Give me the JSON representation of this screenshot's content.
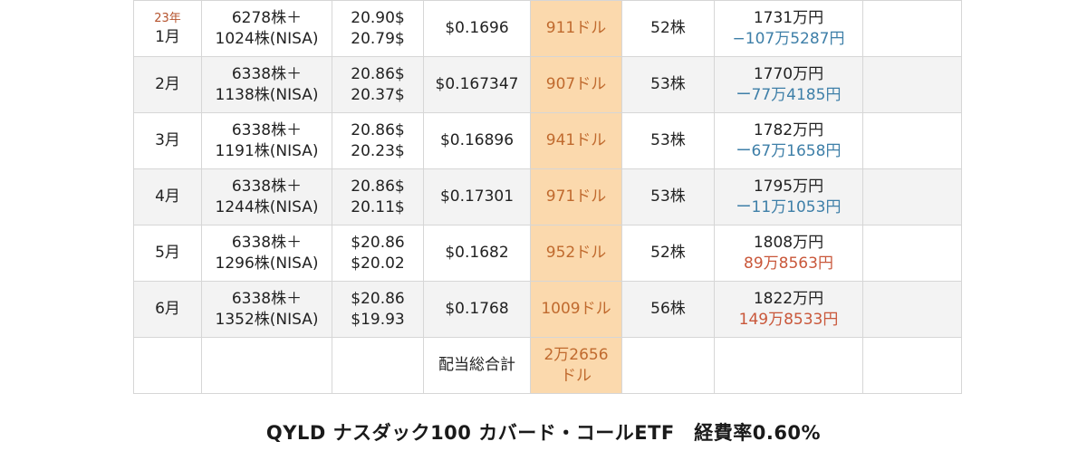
{
  "rows": [
    {
      "year": "23年",
      "month": "1月",
      "shares_1": "6278株＋",
      "shares_2": "1024株(NISA)",
      "price_1": "20.90$",
      "price_2": "20.79$",
      "dividend_per_share": "$0.1696",
      "dividend_total": "911ドル",
      "reinvest": "52株",
      "value": "1731万円",
      "pl": "−107万5287円",
      "pl_sign": "neg"
    },
    {
      "year": "",
      "month": "2月",
      "shares_1": "6338株＋",
      "shares_2": "1138株(NISA)",
      "price_1": "20.86$",
      "price_2": "20.37$",
      "dividend_per_share": "$0.167347",
      "dividend_total": "907ドル",
      "reinvest": "53株",
      "value": "1770万円",
      "pl": "ー77万4185円",
      "pl_sign": "neg"
    },
    {
      "year": "",
      "month": "3月",
      "shares_1": "6338株＋",
      "shares_2": "1191株(NISA)",
      "price_1": "20.86$",
      "price_2": "20.23$",
      "dividend_per_share": "$0.16896",
      "dividend_total": "941ドル",
      "reinvest": "53株",
      "value": "1782万円",
      "pl": "ー67万1658円",
      "pl_sign": "neg"
    },
    {
      "year": "",
      "month": "4月",
      "shares_1": "6338株＋",
      "shares_2": "1244株(NISA)",
      "price_1": "20.86$",
      "price_2": "20.11$",
      "dividend_per_share": "$0.17301",
      "dividend_total": "971ドル",
      "reinvest": "53株",
      "value": "1795万円",
      "pl": "ー11万1053円",
      "pl_sign": "neg"
    },
    {
      "year": "",
      "month": "5月",
      "shares_1": "6338株＋",
      "shares_2": "1296株(NISA)",
      "price_1": "$20.86",
      "price_2": "$20.02",
      "dividend_per_share": "$0.1682",
      "dividend_total": "952ドル",
      "reinvest": "52株",
      "value": "1808万円",
      "pl": "89万8563円",
      "pl_sign": "pos"
    },
    {
      "year": "",
      "month": "6月",
      "shares_1": "6338株＋",
      "shares_2": "1352株(NISA)",
      "price_1": "$20.86",
      "price_2": "$19.93",
      "dividend_per_share": "$0.1768",
      "dividend_total": "1009ドル",
      "reinvest": "56株",
      "value": "1822万円",
      "pl": "149万8533円",
      "pl_sign": "pos"
    }
  ],
  "total": {
    "label": "配当総合計",
    "value_1": "2万2656",
    "value_2": "ドル"
  },
  "caption": "QYLD ナスダック100 カバード・コールETF　経費率0.60%",
  "colors": {
    "highlight_bg": "#fbd9ad",
    "highlight_text": "#c06a2e",
    "negative": "#3e7fa8",
    "positive": "#c9573a",
    "row_shade": "#f3f3f3"
  }
}
